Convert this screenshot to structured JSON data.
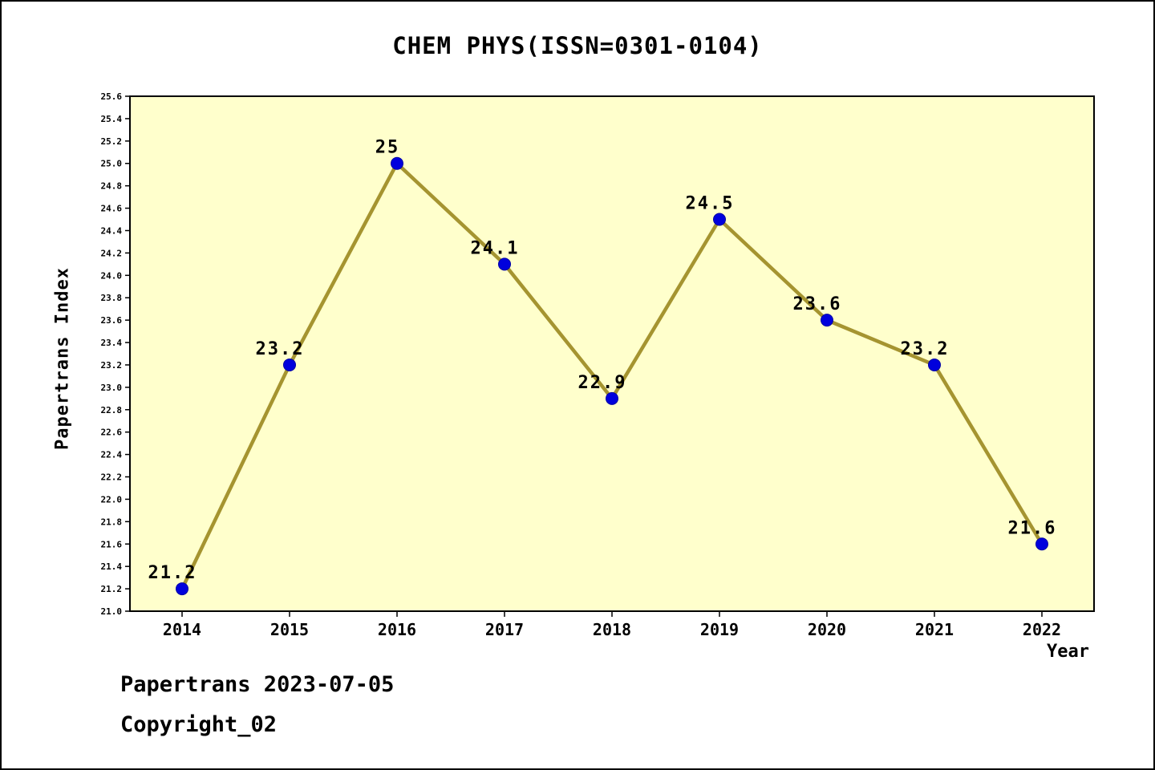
{
  "title": "CHEM PHYS(ISSN=0301-0104)",
  "x_axis_label": "Year",
  "y_axis_label": "Papertrans Index",
  "footer": {
    "line1": "Papertrans 2023-07-05",
    "line2": "Copyright_02"
  },
  "chart_data": {
    "type": "line",
    "title": "CHEM PHYS(ISSN=0301-0104)",
    "xlabel": "Year",
    "ylabel": "Papertrans Index",
    "categories": [
      "2014",
      "2015",
      "2016",
      "2017",
      "2018",
      "2019",
      "2020",
      "2021",
      "2022"
    ],
    "values": [
      21.2,
      23.2,
      25,
      24.1,
      22.9,
      24.5,
      23.6,
      23.2,
      21.6
    ],
    "point_labels": [
      "21.2",
      "23.2",
      "25",
      "24.1",
      "22.9",
      "24.5",
      "23.6",
      "23.2",
      "21.6"
    ],
    "ylim": [
      21.0,
      25.6
    ],
    "ytick_step": 0.2,
    "grid": false,
    "legend": "none",
    "colors": {
      "line": "#a59430",
      "marker": "#0000dd",
      "marker_edge": "#0000a6",
      "plot_bg": "#ffffcc",
      "axis": "#000000",
      "page_bg": "#ffffff"
    }
  }
}
